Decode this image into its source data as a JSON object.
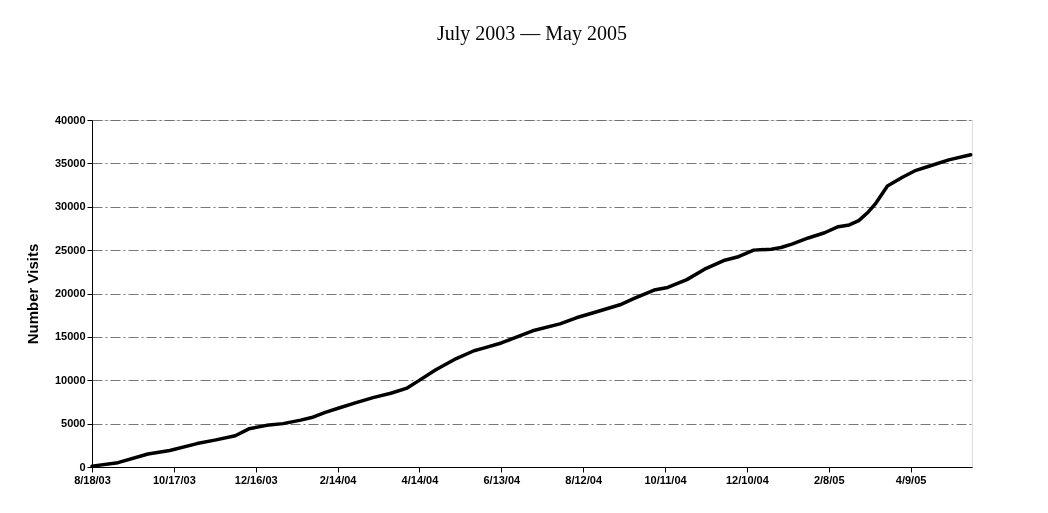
{
  "chart_data": {
    "type": "line",
    "title": "July 2003 — May 2005",
    "ylabel": "Number Visits",
    "x": [
      "2003-08-18",
      "2003-09-06",
      "2003-09-28",
      "2003-10-14",
      "2003-11-03",
      "2003-11-16",
      "2003-12-01",
      "2003-12-11",
      "2003-12-24",
      "2004-01-05",
      "2004-01-18",
      "2004-01-26",
      "2004-02-05",
      "2004-02-15",
      "2004-02-27",
      "2004-03-11",
      "2004-03-24",
      "2004-04-05",
      "2004-04-13",
      "2004-04-26",
      "2004-05-11",
      "2004-05-24",
      "2004-05-31",
      "2004-06-13",
      "2004-06-26",
      "2004-07-06",
      "2004-07-26",
      "2004-08-07",
      "2004-08-22",
      "2004-09-08",
      "2004-09-18",
      "2004-10-03",
      "2004-10-13",
      "2004-10-27",
      "2004-11-09",
      "2004-11-23",
      "2004-12-03",
      "2004-12-15",
      "2004-12-28",
      "2005-01-04",
      "2005-01-12",
      "2005-01-24",
      "2005-02-05",
      "2005-02-15",
      "2005-02-23",
      "2005-03-02",
      "2005-03-09",
      "2005-03-14",
      "2005-03-23",
      "2005-04-03",
      "2005-04-13",
      "2005-04-23",
      "2005-05-07",
      "2005-05-23"
    ],
    "series": [
      {
        "color": "#000000",
        "values": [
          100,
          500,
          1500,
          1900,
          2700,
          3100,
          3600,
          4400,
          4800,
          5000,
          5400,
          5700,
          6300,
          6800,
          7400,
          8000,
          8500,
          9100,
          9900,
          11200,
          12500,
          13400,
          13700,
          14300,
          15100,
          15700,
          16500,
          17200,
          17900,
          18700,
          19400,
          20400,
          20700,
          21600,
          22800,
          23800,
          24200,
          25000,
          25100,
          25300,
          25700,
          26400,
          27000,
          27700,
          27900,
          28400,
          29400,
          30300,
          32400,
          33400,
          34200,
          34700,
          35400,
          36000
        ]
      }
    ],
    "xlim": [
      "2003-08-18",
      "2005-05-24"
    ],
    "xticks": [
      {
        "value": "2003-08-18",
        "label": "8/18/03"
      },
      {
        "value": "2003-10-17",
        "label": "10/17/03"
      },
      {
        "value": "2003-12-16",
        "label": "12/16/03"
      },
      {
        "value": "2004-02-14",
        "label": "2/14/04"
      },
      {
        "value": "2004-04-14",
        "label": "4/14/04"
      },
      {
        "value": "2004-06-13",
        "label": "6/13/04"
      },
      {
        "value": "2004-08-12",
        "label": "8/12/04"
      },
      {
        "value": "2004-10-11",
        "label": "10/11/04"
      },
      {
        "value": "2004-12-10",
        "label": "12/10/04"
      },
      {
        "value": "2005-02-08",
        "label": "2/8/05"
      },
      {
        "value": "2005-04-09",
        "label": "4/9/05"
      }
    ],
    "ylim": [
      0,
      40000
    ],
    "yticks": [
      0,
      5000,
      10000,
      15000,
      20000,
      25000,
      30000,
      35000,
      40000
    ],
    "grid": "y",
    "marker": "none",
    "line_style": "solid"
  }
}
